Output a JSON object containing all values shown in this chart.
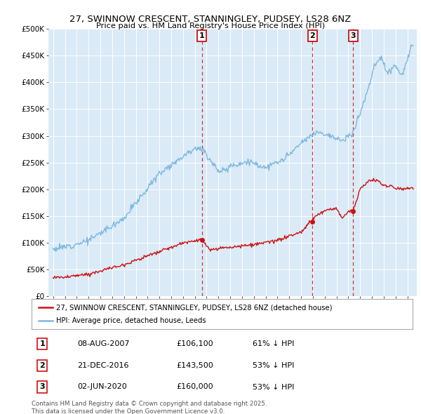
{
  "title_line1": "27, SWINNOW CRESCENT, STANNINGLEY, PUDSEY, LS28 6NZ",
  "title_line2": "Price paid vs. HM Land Registry's House Price Index (HPI)",
  "bg_color": "#daeaf7",
  "hpi_color": "#7db8e0",
  "price_color": "#cc1111",
  "ylim": [
    0,
    500000
  ],
  "yticks": [
    0,
    50000,
    100000,
    150000,
    200000,
    250000,
    300000,
    350000,
    400000,
    450000,
    500000
  ],
  "transactions": [
    {
      "label": "1",
      "date": "08-AUG-2007",
      "price": 106100,
      "x": 2007.59,
      "pct": "61% ↓ HPI"
    },
    {
      "label": "2",
      "date": "21-DEC-2016",
      "price": 143500,
      "x": 2016.97,
      "pct": "53% ↓ HPI"
    },
    {
      "label": "3",
      "date": "02-JUN-2020",
      "price": 160000,
      "x": 2020.42,
      "pct": "53% ↓ HPI"
    }
  ],
  "legend_line1": "27, SWINNOW CRESCENT, STANNINGLEY, PUDSEY, LS28 6NZ (detached house)",
  "legend_line2": "HPI: Average price, detached house, Leeds",
  "footer": "Contains HM Land Registry data © Crown copyright and database right 2025.\nThis data is licensed under the Open Government Licence v3.0.",
  "xmin": 1994.6,
  "xmax": 2025.8
}
